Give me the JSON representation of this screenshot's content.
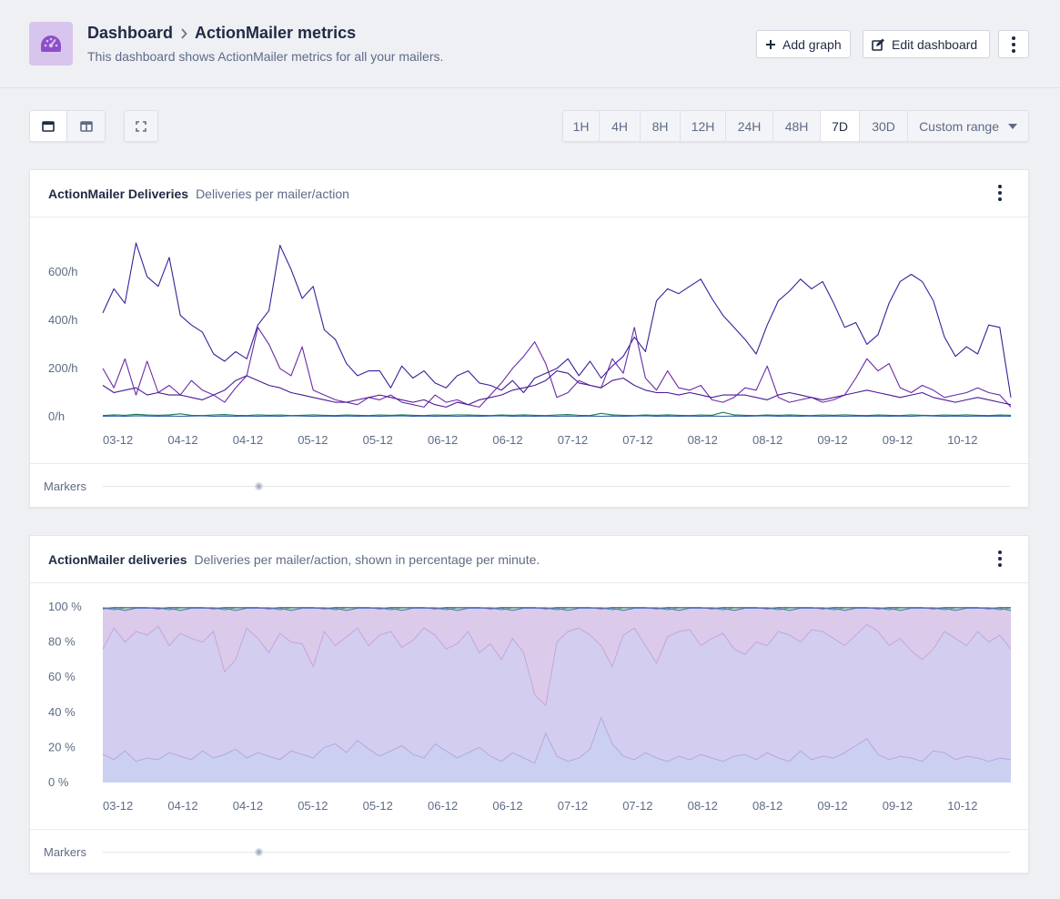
{
  "header": {
    "breadcrumb_root": "Dashboard",
    "title": "ActionMailer metrics",
    "subtitle": "This dashboard shows ActionMailer metrics for all your mailers.",
    "add_graph": "Add graph",
    "edit_dashboard": "Edit dashboard",
    "logo_icon": "gauge-icon",
    "logo_color": "#d8c5ee"
  },
  "toolbar": {
    "ranges": [
      "1H",
      "4H",
      "8H",
      "12H",
      "24H",
      "48H",
      "7D",
      "30D"
    ],
    "active_range": "7D",
    "custom_range": "Custom range"
  },
  "cards": [
    {
      "title": "ActionMailer Deliveries",
      "description": "Deliveries per mailer/action",
      "markers_label": "Markers"
    },
    {
      "title": "ActionMailer deliveries",
      "description": "Deliveries per mailer/action, shown in percentage per minute.",
      "markers_label": "Markers"
    }
  ],
  "chart_data": [
    {
      "type": "line",
      "y_ticks": [
        "600/h",
        "400/h",
        "200/h",
        "0/h"
      ],
      "x_ticks": [
        "03-12",
        "04-12",
        "04-12",
        "05-12",
        "05-12",
        "06-12",
        "06-12",
        "07-12",
        "07-12",
        "08-12",
        "08-12",
        "09-12",
        "09-12",
        "10-12"
      ],
      "ylim": [
        0,
        750
      ],
      "series": [
        {
          "color": "#3b1f9a",
          "values": [
            430,
            530,
            470,
            720,
            580,
            540,
            660,
            420,
            380,
            350,
            260,
            230,
            270,
            240,
            380,
            440,
            710,
            610,
            490,
            540,
            360,
            320,
            220,
            170,
            190,
            190,
            120,
            210,
            160,
            190,
            140,
            120,
            170,
            190,
            140,
            130,
            110,
            150,
            100,
            160,
            180,
            200,
            240,
            170,
            230,
            160,
            210,
            250,
            330,
            270,
            480,
            530,
            510,
            540,
            570,
            490,
            420,
            370,
            320,
            260,
            380,
            480,
            520,
            570,
            530,
            560,
            470,
            370,
            390,
            300,
            340,
            470,
            560,
            590,
            560,
            480,
            330,
            250,
            290,
            260,
            380,
            370,
            80
          ]
        },
        {
          "color": "#6a2aa8",
          "values": [
            200,
            120,
            240,
            90,
            230,
            100,
            130,
            90,
            150,
            110,
            90,
            60,
            120,
            170,
            370,
            300,
            200,
            170,
            290,
            110,
            90,
            70,
            60,
            50,
            80,
            70,
            90,
            60,
            50,
            40,
            90,
            60,
            70,
            50,
            40,
            90,
            140,
            200,
            250,
            310,
            220,
            80,
            100,
            150,
            130,
            120,
            240,
            180,
            370,
            160,
            110,
            190,
            120,
            110,
            130,
            70,
            60,
            80,
            120,
            110,
            210,
            80,
            60,
            70,
            80,
            60,
            70,
            90,
            160,
            240,
            190,
            220,
            120,
            100,
            130,
            110,
            80,
            90,
            100,
            120,
            100,
            90,
            40
          ]
        },
        {
          "color": "#4a1a95",
          "values": [
            130,
            100,
            110,
            120,
            90,
            100,
            90,
            90,
            80,
            70,
            90,
            110,
            150,
            170,
            150,
            130,
            120,
            100,
            90,
            80,
            70,
            60,
            60,
            70,
            80,
            90,
            80,
            70,
            60,
            70,
            50,
            40,
            60,
            50,
            70,
            80,
            90,
            110,
            120,
            130,
            150,
            190,
            180,
            140,
            130,
            120,
            150,
            160,
            130,
            110,
            100,
            100,
            90,
            100,
            90,
            80,
            90,
            90,
            90,
            80,
            70,
            90,
            100,
            90,
            80,
            70,
            80,
            90,
            100,
            110,
            100,
            90,
            80,
            90,
            100,
            80,
            70,
            60,
            70,
            80,
            70,
            60,
            50
          ]
        },
        {
          "color": "#1f7a5a",
          "values": [
            5,
            8,
            6,
            10,
            7,
            6,
            8,
            12,
            6,
            5,
            7,
            9,
            6,
            5,
            8,
            6,
            7,
            5,
            6,
            8,
            6,
            5,
            7,
            6,
            5,
            7,
            6,
            8,
            6,
            5,
            7,
            6,
            8,
            7,
            6,
            5,
            7,
            6,
            8,
            6,
            5,
            7,
            9,
            6,
            5,
            14,
            8,
            6,
            5,
            7,
            6,
            8,
            6,
            5,
            7,
            6,
            18,
            8,
            6,
            5,
            7,
            6,
            8,
            6,
            5,
            7,
            6,
            8,
            6,
            5,
            7,
            6,
            5,
            8,
            6,
            5,
            7,
            6,
            8,
            6,
            5,
            7,
            6
          ]
        },
        {
          "color": "#2a5fa8",
          "values": [
            2,
            3,
            2,
            4,
            3,
            2,
            3,
            2,
            3,
            4,
            2,
            3,
            2,
            3,
            2,
            3,
            2,
            4,
            3,
            2,
            3,
            2,
            3,
            2,
            3,
            2,
            3,
            4,
            2,
            3,
            2,
            3,
            2,
            3,
            2,
            3,
            4,
            2,
            3,
            2,
            3,
            2,
            3,
            2,
            3,
            2,
            3,
            2,
            3,
            4,
            2,
            3,
            2,
            3,
            2,
            3,
            2,
            3,
            2,
            3,
            4,
            2,
            3,
            2,
            3,
            2,
            3,
            2,
            3,
            2,
            3,
            2,
            3,
            2,
            4,
            3,
            2,
            3,
            2,
            3,
            2,
            3,
            2
          ]
        }
      ]
    },
    {
      "type": "area",
      "y_ticks": [
        "100 %",
        "80 %",
        "60 %",
        "40 %",
        "20 %",
        "0 %"
      ],
      "x_ticks": [
        "03-12",
        "04-12",
        "04-12",
        "05-12",
        "05-12",
        "06-12",
        "06-12",
        "07-12",
        "07-12",
        "08-12",
        "08-12",
        "09-12",
        "09-12",
        "10-12"
      ],
      "ylim": [
        0,
        100
      ],
      "lower_band": {
        "fill": "#ccd0f0",
        "stroke": "#b7a6e0",
        "values": [
          16,
          13,
          18,
          12,
          14,
          13,
          17,
          15,
          13,
          18,
          14,
          16,
          19,
          14,
          17,
          15,
          13,
          18,
          16,
          14,
          20,
          22,
          17,
          24,
          19,
          15,
          18,
          21,
          16,
          14,
          22,
          18,
          14,
          17,
          20,
          15,
          12,
          17,
          14,
          11,
          28,
          15,
          12,
          14,
          19,
          37,
          22,
          15,
          13,
          17,
          14,
          12,
          15,
          13,
          16,
          14,
          12,
          15,
          16,
          13,
          17,
          14,
          12,
          18,
          13,
          15,
          14,
          17,
          21,
          25,
          16,
          13,
          15,
          14,
          12,
          18,
          17,
          13,
          15,
          14,
          12,
          14,
          13
        ]
      },
      "upper_band": {
        "fill": "#dccaeb",
        "stroke": "#c3a6dc",
        "values": [
          76,
          88,
          80,
          86,
          84,
          89,
          78,
          85,
          82,
          80,
          86,
          63,
          70,
          88,
          82,
          74,
          85,
          80,
          79,
          66,
          86,
          78,
          83,
          88,
          78,
          84,
          86,
          77,
          81,
          88,
          84,
          76,
          79,
          86,
          74,
          79,
          70,
          82,
          74,
          50,
          44,
          80,
          86,
          88,
          84,
          78,
          66,
          84,
          88,
          78,
          68,
          83,
          86,
          87,
          78,
          82,
          85,
          76,
          73,
          80,
          78,
          86,
          84,
          80,
          87,
          86,
          82,
          78,
          84,
          90,
          86,
          78,
          82,
          75,
          70,
          76,
          86,
          82,
          78,
          86,
          80,
          84,
          76
        ]
      },
      "top_lines": [
        {
          "color": "#c0463a"
        },
        {
          "color": "#3aa05a"
        },
        {
          "color": "#4a6fc0"
        }
      ]
    }
  ]
}
